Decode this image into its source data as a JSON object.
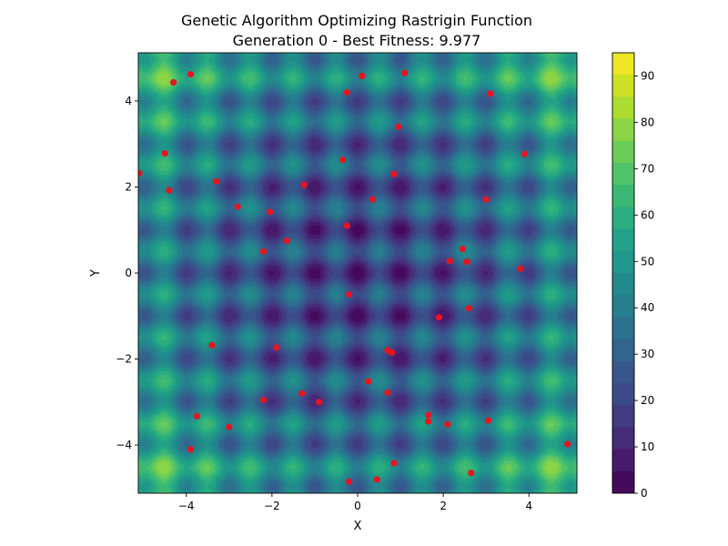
{
  "chart_data": {
    "type": "contour-scatter",
    "title": "Genetic Algorithm Optimizing Rastrigin Function",
    "subtitle": "Generation 0 - Best Fitness: 9.977",
    "xlabel": "X",
    "ylabel": "Y",
    "xlim": [
      -5.12,
      5.12
    ],
    "ylim": [
      -5.12,
      5.12
    ],
    "xticks": [
      -4,
      -2,
      0,
      2,
      4
    ],
    "yticks": [
      -4,
      -2,
      0,
      2,
      4
    ],
    "xtick_labels": [
      "−4",
      "−2",
      "0",
      "2",
      "4"
    ],
    "ytick_labels": [
      "−4",
      "−2",
      "0",
      "2",
      "4"
    ],
    "surface": {
      "function": "rastrigin",
      "A": 10,
      "levels": 20
    },
    "colorbar": {
      "colormap": "viridis",
      "range": [
        0,
        95
      ],
      "ticks": [
        0,
        10,
        20,
        30,
        40,
        50,
        60,
        70,
        80,
        90
      ],
      "tick_labels": [
        "0",
        "10",
        "20",
        "30",
        "40",
        "50",
        "60",
        "70",
        "80",
        "90"
      ]
    },
    "population_color": "#e8141e",
    "population": [
      [
        -4.3,
        4.43
      ],
      [
        -3.9,
        4.62
      ],
      [
        -0.25,
        4.2
      ],
      [
        0.1,
        4.58
      ],
      [
        1.1,
        4.65
      ],
      [
        3.1,
        4.17
      ],
      [
        0.95,
        3.4
      ],
      [
        -4.5,
        2.78
      ],
      [
        3.9,
        2.77
      ],
      [
        -0.35,
        2.63
      ],
      [
        0.85,
        2.3
      ],
      [
        -5.1,
        2.32
      ],
      [
        -3.3,
        2.13
      ],
      [
        -4.4,
        1.92
      ],
      [
        -1.25,
        2.05
      ],
      [
        3.0,
        1.71
      ],
      [
        0.35,
        1.71
      ],
      [
        -2.8,
        1.54
      ],
      [
        -2.05,
        1.42
      ],
      [
        -0.25,
        1.1
      ],
      [
        -1.65,
        0.75
      ],
      [
        -2.2,
        0.5
      ],
      [
        2.45,
        0.56
      ],
      [
        2.15,
        0.28
      ],
      [
        2.55,
        0.26
      ],
      [
        3.8,
        0.1
      ],
      [
        -0.2,
        -0.5
      ],
      [
        2.6,
        -0.82
      ],
      [
        1.9,
        -1.03
      ],
      [
        -3.4,
        -1.68
      ],
      [
        -1.9,
        -1.73
      ],
      [
        0.7,
        -1.8
      ],
      [
        0.8,
        -1.85
      ],
      [
        0.25,
        -2.52
      ],
      [
        -1.3,
        -2.8
      ],
      [
        0.7,
        -2.78
      ],
      [
        -2.2,
        -2.95
      ],
      [
        -0.9,
        -3.0
      ],
      [
        1.65,
        -3.3
      ],
      [
        1.65,
        -3.45
      ],
      [
        2.1,
        -3.52
      ],
      [
        3.05,
        -3.43
      ],
      [
        -3.75,
        -3.33
      ],
      [
        -3.0,
        -3.58
      ],
      [
        4.9,
        -3.98
      ],
      [
        -3.9,
        -4.1
      ],
      [
        0.85,
        -4.42
      ],
      [
        2.65,
        -4.65
      ],
      [
        0.45,
        -4.8
      ],
      [
        -0.2,
        -4.85
      ]
    ]
  }
}
